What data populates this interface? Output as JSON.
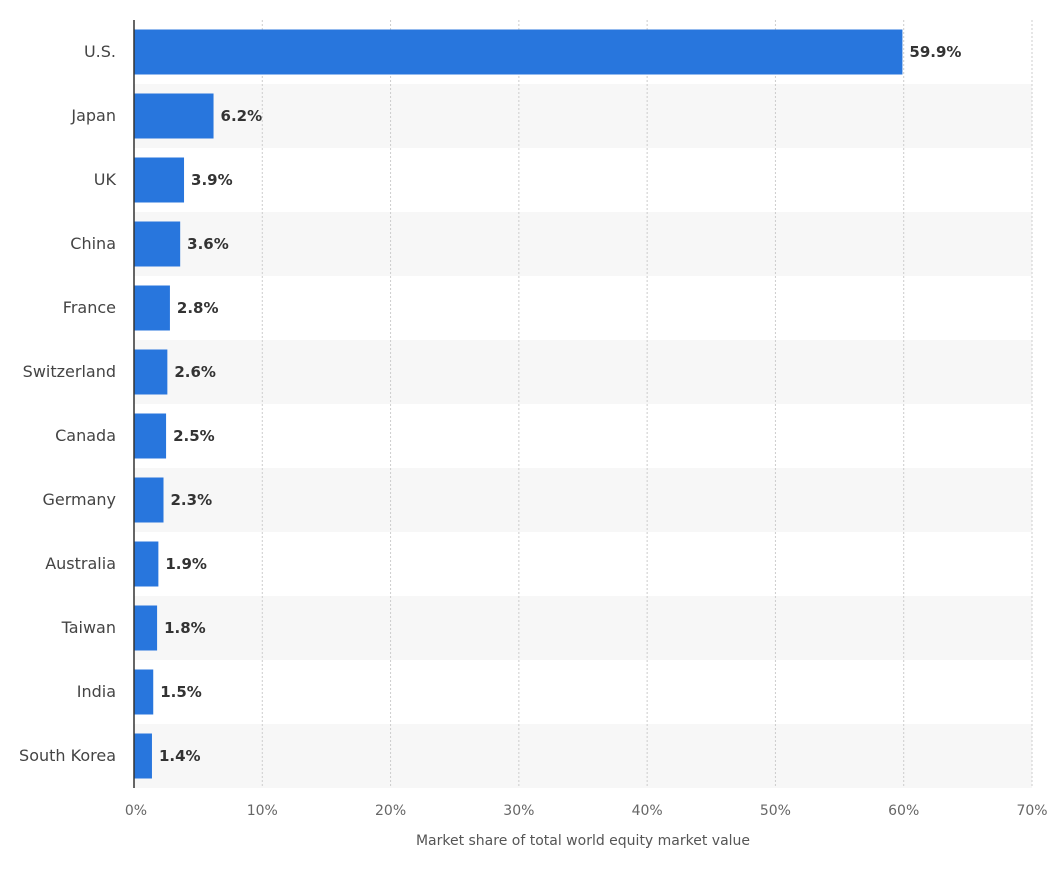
{
  "chart_data": {
    "type": "bar",
    "orientation": "horizontal",
    "categories": [
      "U.S.",
      "Japan",
      "UK",
      "China",
      "France",
      "Switzerland",
      "Canada",
      "Germany",
      "Australia",
      "Taiwan",
      "India",
      "South Korea"
    ],
    "values": [
      59.9,
      6.2,
      3.9,
      3.6,
      2.8,
      2.6,
      2.5,
      2.3,
      1.9,
      1.8,
      1.5,
      1.4
    ],
    "value_labels": [
      "59.9%",
      "6.2%",
      "3.9%",
      "3.6%",
      "2.8%",
      "2.6%",
      "2.5%",
      "2.3%",
      "1.9%",
      "1.8%",
      "1.5%",
      "1.4%"
    ],
    "xlabel": "Market share of total world equity market value",
    "ylabel": "",
    "xlim": [
      0,
      70
    ],
    "x_ticks": [
      0,
      10,
      20,
      30,
      40,
      50,
      60,
      70
    ],
    "x_tick_labels": [
      "0%",
      "10%",
      "20%",
      "30%",
      "40%",
      "50%",
      "60%",
      "70%"
    ],
    "grid": true,
    "legend": "none"
  },
  "colors": {
    "bar": "#2876dd",
    "band": "#f7f7f7",
    "grid": "#cccccc",
    "axis": "#333333"
  }
}
